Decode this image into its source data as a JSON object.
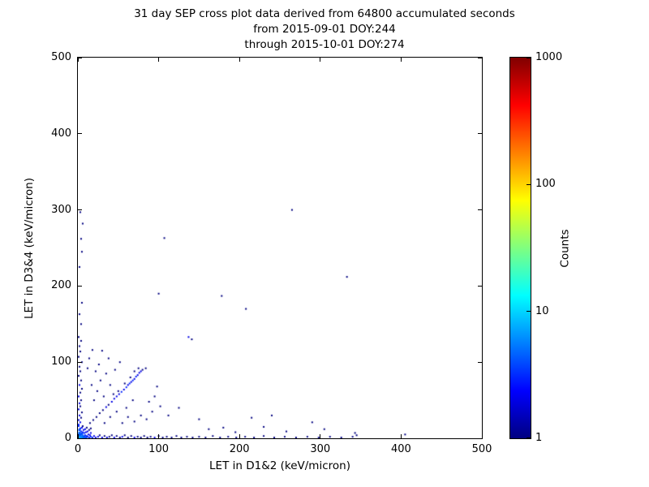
{
  "title": {
    "line1": "31 day SEP cross plot data derived from 64800 accumulated seconds",
    "line2": "from 2015-09-01 DOY:244",
    "line3": "through 2015-10-01 DOY:274"
  },
  "chart_data": {
    "type": "scatter",
    "title": "31 day SEP cross plot data derived from 64800 accumulated seconds from 2015-09-01 DOY:244 through 2015-10-01 DOY:274",
    "xlabel": "LET in D1&2 (keV/micron)",
    "ylabel": "LET in D3&4 (keV/micron)",
    "xlim": [
      0,
      500
    ],
    "ylim": [
      0,
      500
    ],
    "xticks": [
      0,
      100,
      200,
      300,
      400,
      500
    ],
    "yticks": [
      0,
      100,
      200,
      300,
      400,
      500
    ],
    "grid": false,
    "legend": "none",
    "colorbar": {
      "label": "Counts",
      "scale": "log",
      "min": 1,
      "max": 1000,
      "ticks": [
        1,
        10,
        100,
        1000
      ],
      "colormap": "jet",
      "jet_stops": [
        [
          0,
          "#000080"
        ],
        [
          0.125,
          "#0000ff"
        ],
        [
          0.375,
          "#00ffff"
        ],
        [
          0.625,
          "#ffff00"
        ],
        [
          0.875,
          "#ff0000"
        ],
        [
          1,
          "#800000"
        ]
      ]
    },
    "points": [
      [
        1,
        1,
        8
      ],
      [
        2,
        3,
        6
      ],
      [
        3,
        1,
        7
      ],
      [
        4,
        2,
        6
      ],
      [
        1,
        5,
        5
      ],
      [
        2,
        7,
        5
      ],
      [
        5,
        1,
        6
      ],
      [
        6,
        3,
        5
      ],
      [
        7,
        1,
        5
      ],
      [
        3,
        5,
        4
      ],
      [
        5,
        6,
        4
      ],
      [
        8,
        2,
        4
      ],
      [
        9,
        4,
        3
      ],
      [
        10,
        1,
        4
      ],
      [
        11,
        3,
        3
      ],
      [
        6,
        8,
        3
      ],
      [
        4,
        9,
        3
      ],
      [
        2,
        11,
        4
      ],
      [
        8,
        7,
        3
      ],
      [
        12,
        2,
        3
      ],
      [
        13,
        5,
        2
      ],
      [
        10,
        8,
        2
      ],
      [
        7,
        11,
        2
      ],
      [
        3,
        13,
        3
      ],
      [
        14,
        1,
        3
      ],
      [
        15,
        4,
        2
      ],
      [
        12,
        9,
        2
      ],
      [
        9,
        12,
        2
      ],
      [
        5,
        14,
        2
      ],
      [
        16,
        7,
        2
      ],
      [
        14,
        11,
        1
      ],
      [
        11,
        14,
        1
      ],
      [
        16,
        13,
        1
      ],
      [
        1,
        16,
        3
      ],
      [
        6,
        16,
        1
      ],
      [
        16,
        2,
        3
      ],
      [
        18,
        1,
        3
      ],
      [
        20,
        3,
        2
      ],
      [
        22,
        1,
        2
      ],
      [
        25,
        2,
        2
      ],
      [
        27,
        4,
        1
      ],
      [
        30,
        1,
        2
      ],
      [
        33,
        3,
        1
      ],
      [
        36,
        1,
        2
      ],
      [
        39,
        2,
        1
      ],
      [
        42,
        4,
        1
      ],
      [
        45,
        1,
        2
      ],
      [
        48,
        3,
        1
      ],
      [
        52,
        1,
        1
      ],
      [
        55,
        2,
        2
      ],
      [
        58,
        4,
        1
      ],
      [
        62,
        1,
        1
      ],
      [
        66,
        3,
        1
      ],
      [
        70,
        1,
        2
      ],
      [
        74,
        2,
        1
      ],
      [
        78,
        1,
        1
      ],
      [
        82,
        3,
        1
      ],
      [
        86,
        1,
        1
      ],
      [
        90,
        2,
        1
      ],
      [
        95,
        1,
        2
      ],
      [
        100,
        3,
        1
      ],
      [
        105,
        1,
        1
      ],
      [
        110,
        2,
        1
      ],
      [
        116,
        1,
        1
      ],
      [
        122,
        3,
        1
      ],
      [
        128,
        1,
        1
      ],
      [
        135,
        2,
        1
      ],
      [
        142,
        1,
        1
      ],
      [
        150,
        2,
        1
      ],
      [
        158,
        1,
        1
      ],
      [
        167,
        3,
        1
      ],
      [
        176,
        1,
        1
      ],
      [
        186,
        2,
        1
      ],
      [
        196,
        1,
        1
      ],
      [
        207,
        2,
        1
      ],
      [
        218,
        1,
        1
      ],
      [
        230,
        3,
        1
      ],
      [
        243,
        1,
        1
      ],
      [
        256,
        2,
        1
      ],
      [
        270,
        1,
        1
      ],
      [
        284,
        2,
        1
      ],
      [
        298,
        1,
        1
      ],
      [
        312,
        2,
        1
      ],
      [
        326,
        1,
        1
      ],
      [
        340,
        2,
        1
      ],
      [
        345,
        4,
        1
      ],
      [
        1,
        18,
        3
      ],
      [
        3,
        21,
        2
      ],
      [
        1,
        24,
        2
      ],
      [
        4,
        27,
        1
      ],
      [
        2,
        30,
        2
      ],
      [
        5,
        34,
        1
      ],
      [
        1,
        38,
        2
      ],
      [
        3,
        42,
        1
      ],
      [
        2,
        46,
        2
      ],
      [
        4,
        50,
        1
      ],
      [
        1,
        55,
        2
      ],
      [
        3,
        60,
        1
      ],
      [
        5,
        65,
        1
      ],
      [
        2,
        70,
        2
      ],
      [
        4,
        76,
        1
      ],
      [
        1,
        82,
        1
      ],
      [
        3,
        88,
        1
      ],
      [
        2,
        94,
        1
      ],
      [
        5,
        100,
        1
      ],
      [
        1,
        107,
        1
      ],
      [
        3,
        114,
        1
      ],
      [
        2,
        121,
        1
      ],
      [
        4,
        128,
        1
      ],
      [
        1,
        133,
        1
      ],
      [
        4,
        150,
        1
      ],
      [
        2,
        163,
        1
      ],
      [
        5,
        178,
        1
      ],
      [
        15,
        20,
        1
      ],
      [
        19,
        24,
        1
      ],
      [
        23,
        28,
        1
      ],
      [
        27,
        33,
        1
      ],
      [
        31,
        37,
        1
      ],
      [
        35,
        41,
        2
      ],
      [
        38,
        44,
        1
      ],
      [
        42,
        48,
        2
      ],
      [
        45,
        52,
        2
      ],
      [
        48,
        55,
        2
      ],
      [
        51,
        58,
        2
      ],
      [
        54,
        61,
        3
      ],
      [
        57,
        64,
        2
      ],
      [
        60,
        67,
        3
      ],
      [
        62,
        70,
        2
      ],
      [
        64,
        72,
        3
      ],
      [
        66,
        74,
        2
      ],
      [
        68,
        76,
        3
      ],
      [
        70,
        78,
        2
      ],
      [
        72,
        81,
        3
      ],
      [
        74,
        83,
        2
      ],
      [
        76,
        86,
        2
      ],
      [
        78,
        88,
        2
      ],
      [
        80,
        90,
        1
      ],
      [
        50,
        62,
        1
      ],
      [
        58,
        72,
        1
      ],
      [
        65,
        80,
        1
      ],
      [
        44,
        58,
        1
      ],
      [
        70,
        88,
        1
      ],
      [
        75,
        92,
        1
      ],
      [
        20,
        50,
        1
      ],
      [
        24,
        62,
        1
      ],
      [
        28,
        76,
        1
      ],
      [
        32,
        55,
        1
      ],
      [
        17,
        70,
        1
      ],
      [
        22,
        88,
        1
      ],
      [
        26,
        97,
        1
      ],
      [
        14,
        105,
        1
      ],
      [
        18,
        116,
        1
      ],
      [
        12,
        92,
        1
      ],
      [
        35,
        85,
        1
      ],
      [
        40,
        70,
        1
      ],
      [
        46,
        90,
        1
      ],
      [
        52,
        100,
        1
      ],
      [
        38,
        105,
        1
      ],
      [
        30,
        115,
        1
      ],
      [
        55,
        20,
        1
      ],
      [
        62,
        28,
        1
      ],
      [
        70,
        22,
        1
      ],
      [
        78,
        30,
        1
      ],
      [
        85,
        25,
        1
      ],
      [
        92,
        35,
        1
      ],
      [
        88,
        48,
        1
      ],
      [
        95,
        55,
        1
      ],
      [
        102,
        42,
        1
      ],
      [
        98,
        68,
        1
      ],
      [
        84,
        92,
        1
      ],
      [
        112,
        30,
        1
      ],
      [
        125,
        40,
        1
      ],
      [
        60,
        40,
        1
      ],
      [
        68,
        50,
        1
      ],
      [
        48,
        35,
        1
      ],
      [
        40,
        28,
        1
      ],
      [
        33,
        20,
        1
      ],
      [
        265,
        300,
        1
      ],
      [
        333,
        212,
        1
      ],
      [
        208,
        170,
        1
      ],
      [
        178,
        187,
        1
      ],
      [
        137,
        133,
        2
      ],
      [
        141,
        130,
        1
      ],
      [
        100,
        190,
        1
      ],
      [
        107,
        263,
        1
      ],
      [
        3,
        297,
        1
      ],
      [
        6,
        282,
        1
      ],
      [
        4,
        262,
        1
      ],
      [
        5,
        245,
        1
      ],
      [
        2,
        225,
        1
      ],
      [
        215,
        27,
        1
      ],
      [
        230,
        15,
        1
      ],
      [
        258,
        9,
        1
      ],
      [
        290,
        21,
        1
      ],
      [
        305,
        12,
        1
      ],
      [
        343,
        7,
        1
      ],
      [
        405,
        5,
        1
      ],
      [
        180,
        14,
        1
      ],
      [
        195,
        8,
        1
      ],
      [
        162,
        12,
        1
      ],
      [
        150,
        25,
        1
      ],
      [
        240,
        30,
        1
      ]
    ]
  }
}
